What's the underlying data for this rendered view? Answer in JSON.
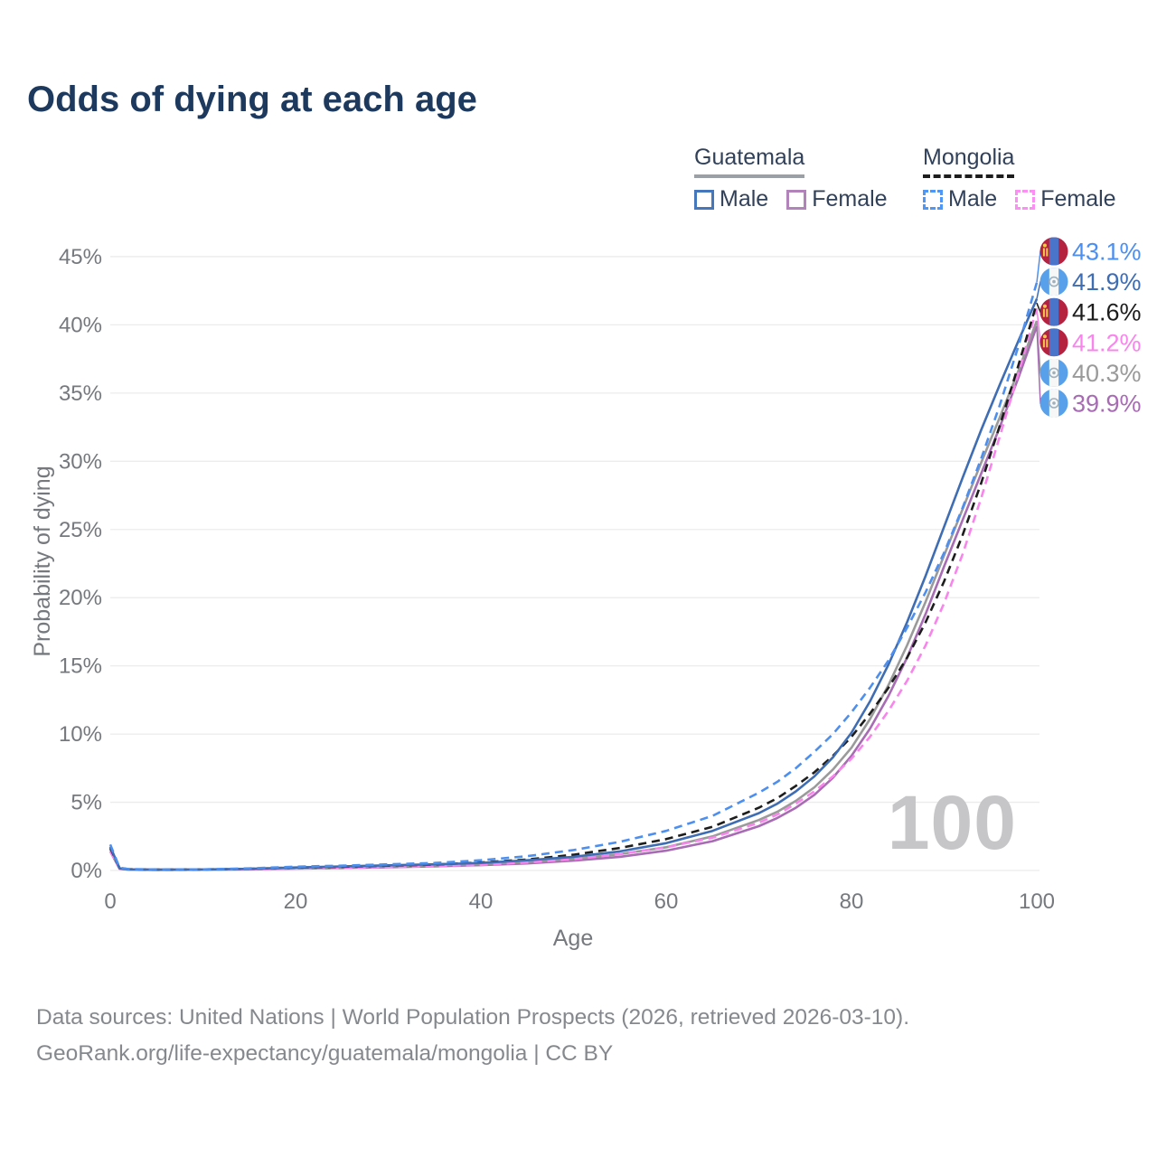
{
  "title": "Odds of dying at each age",
  "watermark": "100",
  "legend": {
    "groups": [
      {
        "country": "Guatemala",
        "line_style": "solid",
        "underline_color": "#9aa0a6",
        "items": [
          {
            "label": "Male",
            "color": "#4477bb"
          },
          {
            "label": "Female",
            "color": "#b283bb"
          }
        ]
      },
      {
        "country": "Mongolia",
        "line_style": "dashed",
        "underline_color": "#1d1d1d",
        "items": [
          {
            "label": "Male",
            "color": "#4f97f7"
          },
          {
            "label": "Female",
            "color": "#fb8ff3"
          }
        ]
      }
    ]
  },
  "chart_data": {
    "type": "line",
    "title": "Odds of dying at each age",
    "xlabel": "Age",
    "ylabel": "Probability of dying",
    "xlim": [
      0,
      100
    ],
    "ylim_percent": [
      0,
      45
    ],
    "grid": true,
    "legend_position": "top-right",
    "x_ticks": [
      0,
      20,
      40,
      60,
      80,
      100
    ],
    "y_ticks": [
      "0%",
      "5%",
      "10%",
      "15%",
      "20%",
      "25%",
      "30%",
      "35%",
      "40%",
      "45%"
    ],
    "x": [
      0,
      1,
      2,
      5,
      10,
      15,
      20,
      25,
      30,
      35,
      40,
      45,
      50,
      55,
      60,
      65,
      70,
      72,
      74,
      76,
      78,
      80,
      82,
      84,
      86,
      88,
      90,
      92,
      94,
      96,
      98,
      100
    ],
    "series": [
      {
        "name": "Mongolia Male",
        "flag": "mongolia",
        "color": "#4d8fef",
        "dash": true,
        "end_label": "43.1%",
        "values": [
          1.9,
          0.2,
          0.1,
          0.07,
          0.08,
          0.15,
          0.28,
          0.35,
          0.45,
          0.55,
          0.75,
          1.05,
          1.5,
          2.1,
          2.9,
          4.0,
          5.7,
          6.5,
          7.5,
          8.7,
          10.0,
          11.6,
          13.4,
          15.4,
          17.8,
          20.4,
          23.3,
          26.6,
          30.2,
          34.1,
          38.4,
          43.1
        ]
      },
      {
        "name": "Guatemala Male",
        "flag": "guatemala",
        "color": "#3e6db4",
        "dash": false,
        "end_label": "41.9%",
        "values": [
          1.75,
          0.15,
          0.08,
          0.06,
          0.07,
          0.12,
          0.22,
          0.3,
          0.38,
          0.45,
          0.55,
          0.75,
          1.0,
          1.4,
          2.0,
          2.9,
          4.2,
          4.9,
          5.8,
          6.9,
          8.3,
          10.1,
          12.4,
          15.1,
          18.2,
          21.6,
          25.2,
          28.8,
          32.3,
          35.6,
          38.8,
          41.9
        ]
      },
      {
        "name": "Mongolia Both sexes",
        "flag": "mongolia",
        "color": "#1d1d1d",
        "dash": true,
        "end_label": "41.6%",
        "values": [
          1.65,
          0.17,
          0.09,
          0.06,
          0.07,
          0.12,
          0.21,
          0.27,
          0.35,
          0.43,
          0.58,
          0.8,
          1.15,
          1.65,
          2.3,
          3.2,
          4.6,
          5.3,
          6.2,
          7.2,
          8.4,
          9.8,
          11.5,
          13.4,
          15.6,
          18.2,
          21.2,
          24.6,
          28.4,
          32.6,
          37.0,
          41.6
        ]
      },
      {
        "name": "Mongolia Female",
        "flag": "mongolia",
        "color": "#f884ec",
        "dash": true,
        "end_label": "41.2%",
        "values": [
          1.4,
          0.14,
          0.08,
          0.05,
          0.06,
          0.09,
          0.15,
          0.19,
          0.25,
          0.32,
          0.42,
          0.58,
          0.82,
          1.2,
          1.7,
          2.4,
          3.5,
          4.1,
          4.9,
          5.8,
          6.9,
          8.2,
          9.8,
          11.7,
          13.9,
          16.5,
          19.6,
          23.2,
          27.3,
          31.8,
          36.4,
          41.2
        ]
      },
      {
        "name": "Guatemala Both sexes",
        "flag": "guatemala",
        "color": "#9a9a9a",
        "dash": false,
        "end_label": "40.3%",
        "values": [
          1.55,
          0.13,
          0.07,
          0.05,
          0.06,
          0.1,
          0.18,
          0.24,
          0.31,
          0.38,
          0.47,
          0.63,
          0.85,
          1.2,
          1.7,
          2.5,
          3.7,
          4.3,
          5.1,
          6.1,
          7.4,
          9.0,
          11.1,
          13.6,
          16.5,
          19.7,
          23.1,
          26.5,
          29.9,
          33.2,
          36.6,
          40.3
        ]
      },
      {
        "name": "Guatemala Female",
        "flag": "guatemala",
        "color": "#a76cb3",
        "dash": false,
        "end_label": "39.9%",
        "values": [
          1.4,
          0.12,
          0.06,
          0.04,
          0.05,
          0.08,
          0.13,
          0.18,
          0.24,
          0.3,
          0.39,
          0.52,
          0.72,
          1.0,
          1.45,
          2.15,
          3.25,
          3.85,
          4.6,
          5.55,
          6.8,
          8.4,
          10.4,
          12.8,
          15.6,
          18.8,
          22.3,
          25.7,
          29.1,
          32.5,
          36.1,
          39.9
        ]
      }
    ],
    "flag_colors": {
      "mongolia": {
        "red": "#b5223f",
        "blue": "#4a74c9",
        "yellow": "#f2c94c"
      },
      "guatemala": {
        "blue": "#58a0ea",
        "white": "#f7f7f7",
        "emblem": "#9fb0ba"
      }
    }
  },
  "footer": {
    "line1": "Data sources: United Nations | World Population Prospects (2026, retrieved 2026-03-10).",
    "line2": "GeoRank.org/life-expectancy/guatemala/mongolia | CC BY"
  }
}
